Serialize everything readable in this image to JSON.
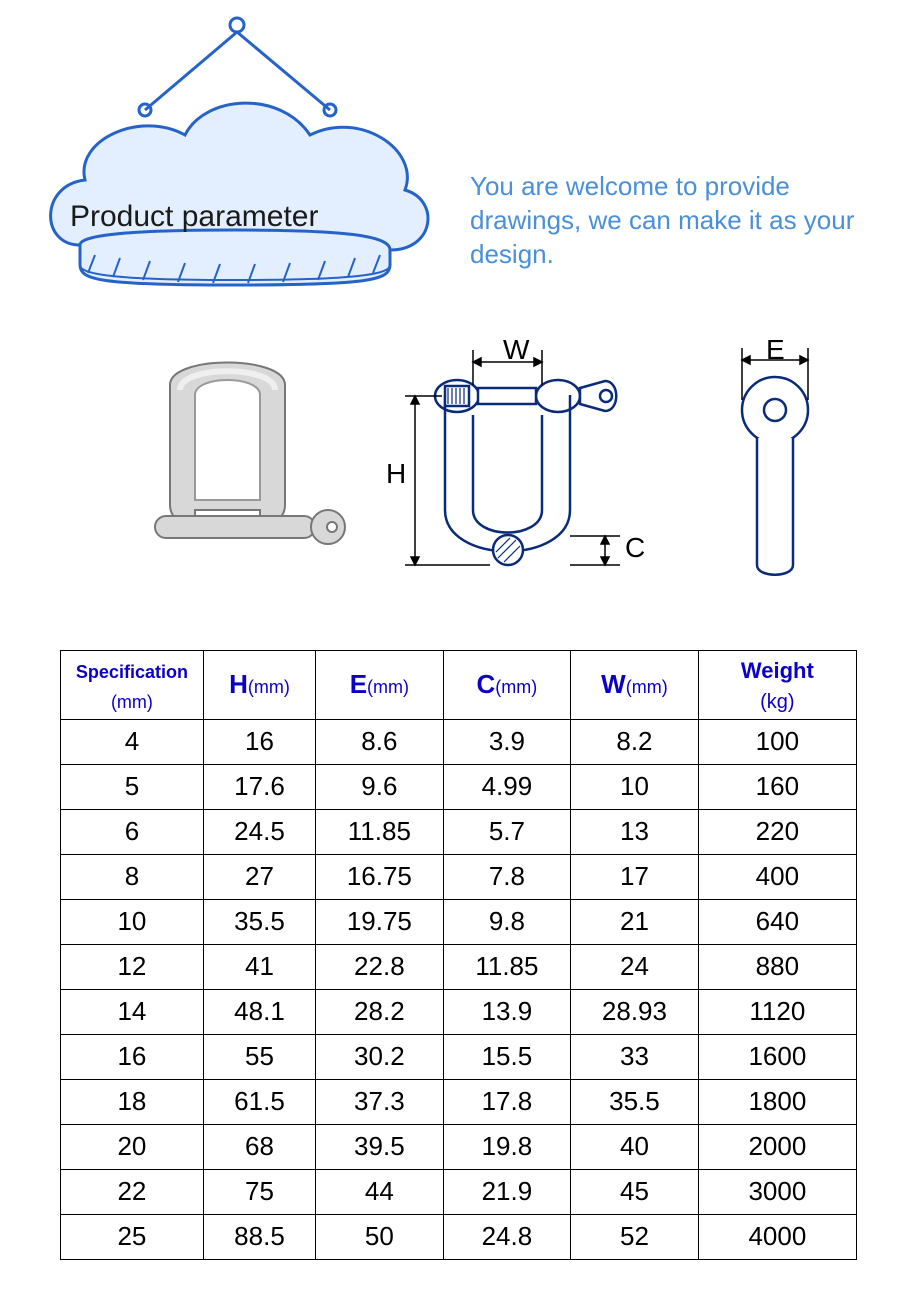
{
  "header": {
    "title": "Product parameter",
    "welcome_text": "You are welcome to provide drawings, we can make it as your design.",
    "cloud_fill": "#e3efff",
    "cloud_stroke": "#2563c9",
    "cloud_stroke_width": 3,
    "title_color": "#1a1a1a",
    "title_fontsize": 30,
    "welcome_color": "#4a8fd9",
    "welcome_fontsize": 26
  },
  "diagram": {
    "labels": {
      "W": "W",
      "H": "H",
      "C": "C",
      "E": "E"
    },
    "stroke": "#0a2b7a",
    "fill": "#ffffff",
    "hatch": "#888888"
  },
  "table": {
    "border_color": "#000000",
    "header_color": "#0b00c7",
    "columns": [
      {
        "main": "Specification",
        "unit": "(mm)",
        "class": "spec",
        "width": "18%"
      },
      {
        "main": "H",
        "unit": "(mm)",
        "class": "",
        "width": "14%"
      },
      {
        "main": "E",
        "unit": "(mm)",
        "class": "",
        "width": "16%"
      },
      {
        "main": "C",
        "unit": "(mm)",
        "class": "",
        "width": "16%"
      },
      {
        "main": "W",
        "unit": "(mm)",
        "class": "",
        "width": "16%"
      },
      {
        "main": "Weight",
        "unit": "(kg)",
        "class": "weight",
        "width": "20%"
      }
    ],
    "rows": [
      [
        "4",
        "16",
        "8.6",
        "3.9",
        "8.2",
        "100"
      ],
      [
        "5",
        "17.6",
        "9.6",
        "4.99",
        "10",
        "160"
      ],
      [
        "6",
        "24.5",
        "11.85",
        "5.7",
        "13",
        "220"
      ],
      [
        "8",
        "27",
        "16.75",
        "7.8",
        "17",
        "400"
      ],
      [
        "10",
        "35.5",
        "19.75",
        "9.8",
        "21",
        "640"
      ],
      [
        "12",
        "41",
        "22.8",
        "11.85",
        "24",
        "880"
      ],
      [
        "14",
        "48.1",
        "28.2",
        "13.9",
        "28.93",
        "1120"
      ],
      [
        "16",
        "55",
        "30.2",
        "15.5",
        "33",
        "1600"
      ],
      [
        "18",
        "61.5",
        "37.3",
        "17.8",
        "35.5",
        "1800"
      ],
      [
        "20",
        "68",
        "39.5",
        "19.8",
        "40",
        "2000"
      ],
      [
        "22",
        "75",
        "44",
        "21.9",
        "45",
        "3000"
      ],
      [
        "25",
        "88.5",
        "50",
        "24.8",
        "52",
        "4000"
      ]
    ]
  }
}
